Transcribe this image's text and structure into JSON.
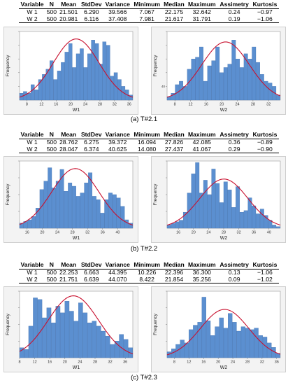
{
  "columns": [
    "Variable",
    "N",
    "Mean",
    "StdDev",
    "Variance",
    "Minimum",
    "Median",
    "Maximum",
    "Assimetry",
    "Kurtosis"
  ],
  "ylabel": "Frequency",
  "panels": [
    {
      "caption": "(a) T#2.1",
      "rows": [
        [
          "W 1",
          "500",
          "21.501",
          "6.290",
          "39.566",
          "7.067",
          "22.175",
          "32.642",
          "0.24",
          "−0.97"
        ],
        [
          "W 2",
          "500",
          "20.981",
          "6.116",
          "37.408",
          "7.981",
          "21.617",
          "31.791",
          "0.19",
          "−1.06"
        ]
      ],
      "charts": [
        {
          "xlabel": "W1",
          "xticks": [
            "8",
            "12",
            "16",
            "20",
            "24",
            "28",
            "32",
            "36"
          ],
          "yticks": [
            "",
            "",
            "",
            "",
            ""
          ]
        },
        {
          "xlabel": "W2",
          "xticks": [
            "8",
            "12",
            "16",
            "20",
            "24",
            "28",
            "32"
          ],
          "yticks": [
            "40",
            "",
            "",
            "",
            ""
          ]
        }
      ]
    },
    {
      "caption": "(b) T#2.2",
      "rows": [
        [
          "W 1",
          "500",
          "28.762",
          "6.275",
          "39.372",
          "16.094",
          "27.826",
          "42.085",
          "0.36",
          "−0.89"
        ],
        [
          "W 2",
          "500",
          "28.047",
          "6.374",
          "40.625",
          "14.080",
          "27.437",
          "41.067",
          "0.29",
          "−0.90"
        ]
      ],
      "charts": [
        {
          "xlabel": "W1",
          "xticks": [
            "16",
            "20",
            "24",
            "28",
            "32",
            "36",
            "40"
          ],
          "yticks": [
            "",
            "",
            "",
            ""
          ]
        },
        {
          "xlabel": "W2",
          "xticks": [
            "16",
            "20",
            "24",
            "28",
            "32",
            "36",
            "40"
          ],
          "yticks": [
            "",
            "",
            "",
            ""
          ]
        }
      ]
    },
    {
      "caption": "(c) T#2.3",
      "rows": [
        [
          "W 1",
          "500",
          "22.253",
          "6.663",
          "44.395",
          "10.226",
          "22.396",
          "36.300",
          "0.13",
          "−1.06"
        ],
        [
          "W 2",
          "500",
          "21.751",
          "6.639",
          "44.070",
          "8.422",
          "21.854",
          "35.256",
          "0.09",
          "−1.02"
        ]
      ],
      "charts": [
        {
          "xlabel": "W1",
          "xticks": [
            "8",
            "12",
            "16",
            "20",
            "24",
            "28",
            "32",
            "36"
          ],
          "yticks": [
            "",
            "",
            "",
            ""
          ]
        },
        {
          "xlabel": "W2",
          "xticks": [
            "8",
            "12",
            "16",
            "20",
            "24",
            "28",
            "32",
            "36"
          ],
          "yticks": [
            "",
            "",
            "",
            ""
          ]
        }
      ]
    }
  ],
  "chart_data": [
    {
      "type": "bar",
      "panel": "(a) T#2.1",
      "xlabel": "W1",
      "ylabel": "Frequency",
      "xlim": [
        6,
        37
      ],
      "ylim": [
        0,
        40
      ],
      "series": [
        {
          "values": [
            4,
            5,
            4,
            9,
            6,
            12,
            15,
            18,
            23,
            12,
            17,
            22,
            28,
            33,
            19,
            27,
            30,
            19,
            27,
            35,
            33,
            21,
            34,
            32,
            14,
            16,
            12,
            8,
            6,
            3
          ]
        }
      ],
      "fit_curve": "normal",
      "fit": {
        "mean": 21.501,
        "sd": 6.29
      }
    },
    {
      "type": "bar",
      "panel": "(a) T#2.1",
      "xlabel": "W2",
      "ylabel": "Frequency",
      "xlim": [
        6,
        35
      ],
      "ylim": [
        0,
        40
      ],
      "series": [
        {
          "values": [
            2,
            4,
            9,
            11,
            8,
            18,
            24,
            25,
            31,
            11,
            20,
            23,
            31,
            16,
            19,
            21,
            35,
            24,
            19,
            27,
            24,
            31,
            22,
            15,
            11,
            10,
            8,
            3
          ]
        }
      ],
      "fit_curve": "normal",
      "fit": {
        "mean": 20.981,
        "sd": 6.116
      }
    },
    {
      "type": "bar",
      "panel": "(b) T#2.2",
      "xlabel": "W1",
      "ylabel": "Frequency",
      "xlim": [
        14,
        44
      ],
      "ylim": [
        0,
        40
      ],
      "series": [
        {
          "values": [
            3,
            4,
            5,
            7,
            12,
            23,
            28,
            36,
            24,
            28,
            35,
            22,
            27,
            25,
            19,
            21,
            27,
            33,
            19,
            17,
            9,
            17,
            21,
            20,
            18,
            13,
            5,
            3
          ]
        }
      ],
      "fit_curve": "normal",
      "fit": {
        "mean": 28.762,
        "sd": 6.275
      }
    },
    {
      "type": "bar",
      "panel": "(b) T#2.2",
      "xlabel": "W2",
      "ylabel": "Frequency",
      "xlim": [
        13,
        43
      ],
      "ylim": [
        0,
        42
      ],
      "series": [
        {
          "values": [
            2,
            3,
            4,
            5,
            10,
            22,
            34,
            41,
            22,
            30,
            21,
            37,
            28,
            16,
            29,
            24,
            13,
            26,
            10,
            11,
            19,
            14,
            9,
            12,
            8,
            5,
            2,
            1
          ]
        }
      ],
      "fit_curve": "normal",
      "fit": {
        "mean": 28.047,
        "sd": 6.374
      }
    },
    {
      "type": "bar",
      "panel": "(c) T#2.3",
      "xlabel": "W1",
      "ylabel": "Frequency",
      "xlim": [
        8,
        38
      ],
      "ylim": [
        0,
        40
      ],
      "series": [
        {
          "values": [
            6,
            5,
            19,
            36,
            35,
            24,
            30,
            21,
            31,
            27,
            34,
            28,
            22,
            33,
            27,
            21,
            22,
            19,
            16,
            13,
            8,
            10,
            14,
            11,
            6
          ]
        }
      ],
      "fit_curve": "normal",
      "fit": {
        "mean": 22.253,
        "sd": 6.663
      }
    },
    {
      "type": "bar",
      "panel": "(c) T#2.3",
      "xlabel": "W2",
      "ylabel": "Frequency",
      "xlim": [
        6,
        37
      ],
      "ylim": [
        0,
        45
      ],
      "series": [
        {
          "values": [
            4,
            6,
            9,
            12,
            10,
            19,
            22,
            24,
            41,
            25,
            15,
            21,
            27,
            20,
            30,
            24,
            18,
            21,
            20,
            19,
            20,
            15,
            14,
            10,
            7,
            3
          ]
        }
      ],
      "fit_curve": "normal",
      "fit": {
        "mean": 21.751,
        "sd": 6.639
      }
    }
  ],
  "colors": {
    "bar_fill": "#5b8fd0",
    "bar_stroke": "#3f6fae",
    "curve": "#c8102e",
    "plot_bg": "#ffffff",
    "frame_bg": "#f3f3f3"
  }
}
